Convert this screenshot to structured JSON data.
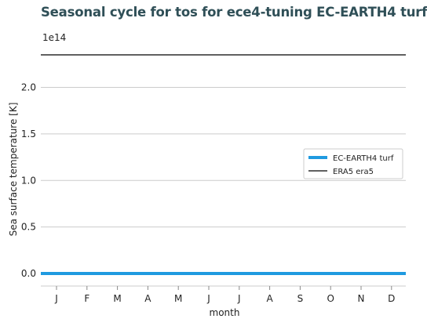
{
  "chart_data": {
    "type": "line",
    "title": "Seasonal cycle for tos for ece4-tuning EC-EARTH4 turf",
    "xlabel": "month",
    "ylabel": "Sea surface temperature [K]",
    "offset_label": "1e14",
    "categories": [
      "J",
      "F",
      "M",
      "A",
      "M",
      "J",
      "J",
      "A",
      "S",
      "O",
      "N",
      "D"
    ],
    "yticks": [
      "0.0",
      "0.5",
      "1.0",
      "1.5",
      "2.0"
    ],
    "ylim": [
      0,
      2.35
    ],
    "y_scale_factor": 100000000000000.0,
    "grid": "horizontal",
    "legend_position": "center-right",
    "series": [
      {
        "name": "EC-EARTH4 turf",
        "color": "#1f9ae0",
        "values": [
          0,
          0,
          0,
          0,
          0,
          0,
          0,
          0,
          0,
          0,
          0,
          0
        ]
      },
      {
        "name": "ERA5 era5",
        "color": "#000000",
        "values": [
          2.35,
          2.35,
          2.35,
          2.35,
          2.35,
          2.35,
          2.35,
          2.35,
          2.35,
          2.35,
          2.35,
          2.35
        ]
      }
    ]
  }
}
